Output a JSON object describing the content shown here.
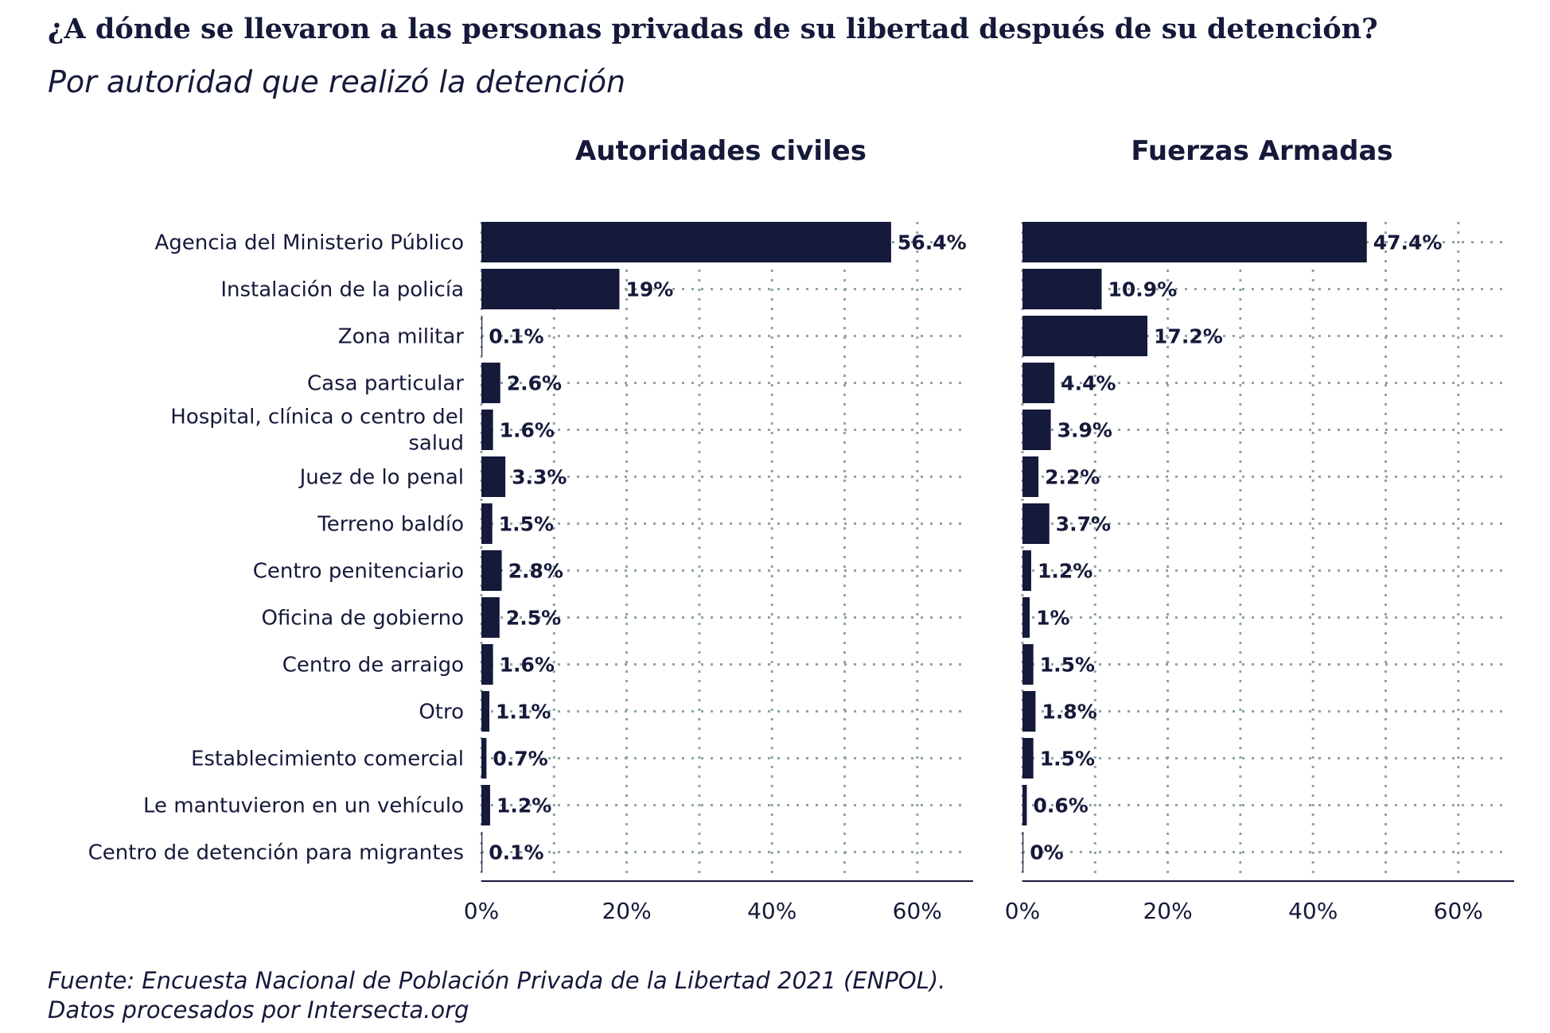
{
  "title": "¿A dónde se llevaron a las personas privadas de su libertad después de su detención?",
  "subtitle": "Por autoridad que realizó la detención",
  "caption_lines": [
    "Fuente: Encuesta Nacional de Población Privada de la Libertad 2021 (ENPOL).",
    "Datos procesados por Intersecta.org"
  ],
  "colors": {
    "bar": "#15193a",
    "text": "#15193a",
    "grid": "#8fa3a3"
  },
  "chart_data": {
    "type": "bar",
    "orientation": "horizontal",
    "categories": [
      "Agencia del Ministerio Público",
      "Instalación de la policía",
      "Zona militar",
      "Casa particular",
      "Hospital, clínica o centro del salud",
      "Juez de lo penal",
      "Terreno baldío",
      "Centro penitenciario",
      "Oficina de gobierno",
      "Centro de arraigo",
      "Otro",
      "Establecimiento comercial",
      "Le mantuvieron en un vehículo",
      "Centro de detención para migrantes"
    ],
    "series": [
      {
        "name": "Autoridades civiles",
        "values": [
          56.4,
          19,
          0.1,
          2.6,
          1.6,
          3.3,
          1.5,
          2.8,
          2.5,
          1.6,
          1.1,
          0.7,
          1.2,
          0.1
        ],
        "labels": [
          "56.4%",
          "19%",
          "0.1%",
          "2.6%",
          "1.6%",
          "3.3%",
          "1.5%",
          "2.8%",
          "2.5%",
          "1.6%",
          "1.1%",
          "0.7%",
          "1.2%",
          "0.1%"
        ]
      },
      {
        "name": "Fuerzas Armadas",
        "values": [
          47.4,
          10.9,
          17.2,
          4.4,
          3.9,
          2.2,
          3.7,
          1.2,
          1,
          1.5,
          1.8,
          1.5,
          0.6,
          0
        ],
        "labels": [
          "47.4%",
          "10.9%",
          "17.2%",
          "4.4%",
          "3.9%",
          "2.2%",
          "3.7%",
          "1.2%",
          "1%",
          "1.5%",
          "1.8%",
          "1.5%",
          "0.6%",
          "0%"
        ]
      }
    ],
    "xlim": [
      0,
      68
    ],
    "x_ticks": [
      0,
      20,
      40,
      60
    ],
    "x_tick_labels": [
      "0%",
      "20%",
      "40%",
      "60%"
    ],
    "grid": true
  }
}
